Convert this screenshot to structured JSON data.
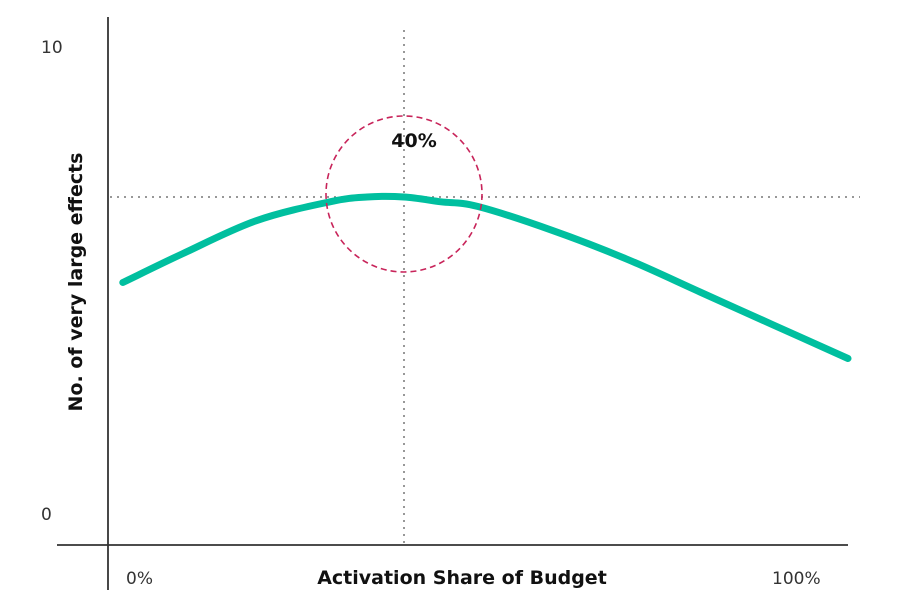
{
  "chart_data": {
    "type": "line",
    "xlabel": "Activation Share of Budget",
    "ylabel": "No. of very large effects",
    "x_tick_labels": [
      "0%",
      "100%"
    ],
    "y_tick_labels": [
      "10",
      "0"
    ],
    "xlim": [
      0,
      100
    ],
    "ylim": [
      0,
      10
    ],
    "grid": false,
    "series": [
      {
        "x": [
          2,
          10,
          20,
          30,
          35,
          40,
          45,
          50,
          60,
          70,
          80,
          90,
          100
        ],
        "y": [
          5.0,
          5.6,
          6.3,
          6.7,
          6.8,
          6.8,
          6.7,
          6.6,
          6.1,
          5.5,
          4.8,
          4.1,
          3.4
        ]
      }
    ],
    "reference_lines": {
      "x": 40,
      "y": 6.8
    },
    "annotation": {
      "text": "40%",
      "x": 40,
      "y": 6.8
    },
    "colors": {
      "line": "#00bf9f",
      "highlight": "#c8245a",
      "reference": "#777777",
      "axis": "#333333"
    }
  }
}
